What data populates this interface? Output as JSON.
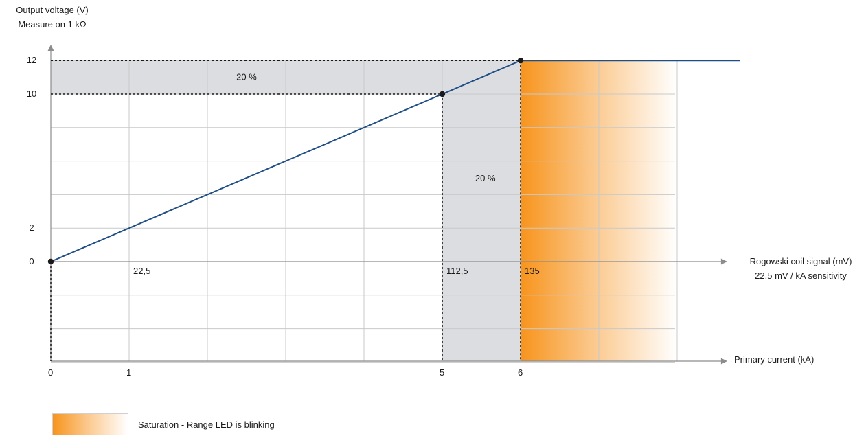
{
  "colors": {
    "line": "#1f4e87",
    "grid": "#c9c9c9",
    "axis": "#8c8c8c",
    "band": "#dcdde0",
    "saturation_start": "#f7941d",
    "saturation_end": "#ffffff",
    "point": "#1a1a1a"
  },
  "chart_data": {
    "type": "line",
    "yaxis": {
      "label_line1": "Output voltage (V)",
      "label_line2": "Measure on 1 kΩ",
      "ticks": [
        {
          "value": 0,
          "label": "0"
        },
        {
          "value": 2,
          "label": "2"
        },
        {
          "value": 10,
          "label": "10"
        },
        {
          "value": 12,
          "label": "12"
        }
      ]
    },
    "xaxis_signal": {
      "label_line1": "Rogowski coil signal (mV)",
      "label_line2": "22.5 mV / kA sensitivity",
      "ticks": [
        {
          "value": 22.5,
          "label": "22,5"
        },
        {
          "value": 112.5,
          "label": "112,5"
        },
        {
          "value": 135,
          "label": "135"
        }
      ]
    },
    "xaxis_current": {
      "label": "Primary current (kA)",
      "ticks": [
        {
          "value": 0,
          "label": "0"
        },
        {
          "value": 1,
          "label": "1"
        },
        {
          "value": 5,
          "label": "5"
        },
        {
          "value": 6,
          "label": "6"
        }
      ]
    },
    "series": [
      {
        "points": [
          {
            "x_kA": 0,
            "y_V": 0
          },
          {
            "x_kA": 5,
            "y_V": 10
          },
          {
            "x_kA": 6,
            "y_V": 12
          },
          {
            "x_kA": 8.8,
            "y_V": 12
          }
        ]
      }
    ],
    "markers": [
      {
        "x_kA": 0,
        "y_V": 0
      },
      {
        "x_kA": 5,
        "y_V": 10
      },
      {
        "x_kA": 6,
        "y_V": 12
      }
    ],
    "bands": [
      {
        "label": "20 %",
        "orientation": "horizontal",
        "from_V": 10,
        "to_V": 12
      },
      {
        "label": "20 %",
        "orientation": "vertical",
        "from_kA": 5,
        "to_kA": 6
      }
    ],
    "saturation": {
      "from_kA": 6,
      "to_kA": 8
    }
  },
  "legend": {
    "saturation_label": "Saturation - Range LED is blinking"
  }
}
